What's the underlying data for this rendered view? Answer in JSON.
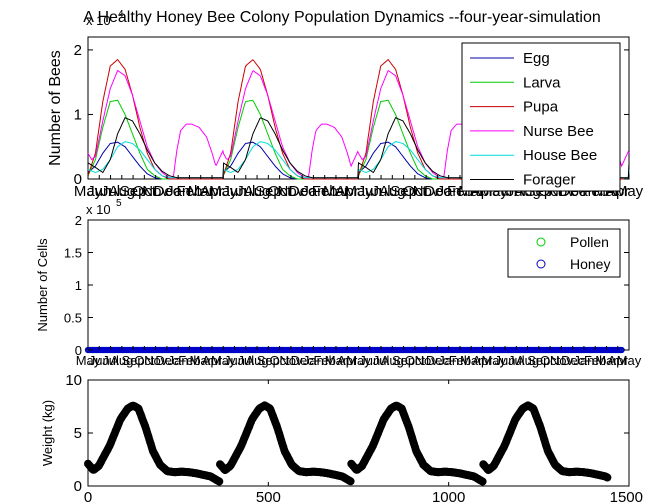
{
  "chart_data": [
    {
      "type": "line",
      "title": "A Healthy Honey Bee Colony Population Dynamics --four-year-simulation",
      "ylabel": "Number of Bees",
      "exponent_label": "x 10",
      "exponent": "4",
      "ylim": [
        0,
        2.2
      ],
      "yticks": [
        "0",
        "1",
        "2"
      ],
      "xlim": [
        0,
        1460
      ],
      "xtick_labels": [
        "May",
        "Jun",
        "Jul",
        "Aug",
        "Sep",
        "Oct",
        "Nov",
        "Dec",
        "Jan",
        "Feb",
        "Mar",
        "Apr",
        "May",
        "Jun",
        "Jul",
        "Aug",
        "Sep",
        "Oct",
        "Nov",
        "Dec",
        "Jan",
        "Feb",
        "Mar",
        "Apr",
        "May",
        "Jun",
        "Jul",
        "Aug",
        "Sep",
        "Oct",
        "Nov",
        "Dec",
        "Jan",
        "Feb",
        "Mar",
        "Apr",
        "May",
        "Jun",
        "Jul",
        "Aug",
        "Sep",
        "Oct",
        "Nov",
        "Dec",
        "Jan",
        "Feb",
        "Mar",
        "Apr",
        "May"
      ],
      "legend_position": "top-right",
      "cycle_days": 365,
      "series": [
        {
          "name": "Egg",
          "color": "#0000aa",
          "x": [
            0,
            20,
            40,
            60,
            80,
            100,
            120,
            140,
            160,
            180,
            200,
            365
          ],
          "y": [
            0.1,
            0.2,
            0.4,
            0.55,
            0.57,
            0.5,
            0.35,
            0.2,
            0.08,
            0.02,
            0,
            0
          ]
        },
        {
          "name": "Larva",
          "color": "#00cc00",
          "x": [
            0,
            20,
            40,
            60,
            80,
            100,
            120,
            140,
            160,
            180,
            200,
            220,
            365
          ],
          "y": [
            0.05,
            0.3,
            0.8,
            1.2,
            1.22,
            1.0,
            0.7,
            0.4,
            0.15,
            0.05,
            0,
            0,
            0
          ]
        },
        {
          "name": "Pupa",
          "color": "#cc0000",
          "x": [
            0,
            20,
            40,
            60,
            80,
            100,
            120,
            140,
            160,
            180,
            200,
            220,
            240,
            365
          ],
          "y": [
            0.05,
            0.4,
            1.2,
            1.75,
            1.85,
            1.7,
            1.3,
            0.8,
            0.4,
            0.15,
            0.05,
            0,
            0,
            0
          ]
        },
        {
          "name": "Nurse Bee",
          "color": "#ff00ff",
          "x": [
            0,
            10,
            20,
            40,
            60,
            80,
            100,
            120,
            140,
            160,
            180,
            200,
            220,
            230,
            240,
            250,
            265,
            280,
            300,
            320,
            335,
            345,
            365
          ],
          "y": [
            0.4,
            0.3,
            0.35,
            0.9,
            1.4,
            1.68,
            1.6,
            1.3,
            0.9,
            0.5,
            0.25,
            0.1,
            0.02,
            0.02,
            0.45,
            0.75,
            0.85,
            0.85,
            0.8,
            0.65,
            0.4,
            0.2,
            0.45
          ]
        },
        {
          "name": "House Bee",
          "color": "#00dddd",
          "x": [
            0,
            20,
            40,
            60,
            80,
            100,
            120,
            140,
            160,
            180,
            200,
            220,
            365
          ],
          "y": [
            0.15,
            0.1,
            0.15,
            0.3,
            0.5,
            0.58,
            0.55,
            0.45,
            0.3,
            0.15,
            0.05,
            0.02,
            0.02
          ]
        },
        {
          "name": "Forager",
          "color": "#000000",
          "x": [
            0,
            20,
            40,
            60,
            80,
            100,
            120,
            140,
            160,
            180,
            200,
            220,
            240,
            365
          ],
          "y": [
            0.25,
            0.18,
            0.1,
            0.3,
            0.7,
            0.95,
            0.9,
            0.7,
            0.45,
            0.25,
            0.12,
            0.05,
            0.02,
            0.02
          ]
        }
      ]
    },
    {
      "type": "scatter",
      "ylabel": "Number of Cells",
      "exponent_label": "x 10",
      "exponent": "5",
      "ylim": [
        0,
        2
      ],
      "yticks": [
        "0",
        "0.5",
        "1",
        "1.5",
        "2"
      ],
      "xlim": [
        0,
        1460
      ],
      "xtick_labels": [
        "May",
        "Jun",
        "Jul",
        "Aug",
        "Sep",
        "Oct",
        "Nov",
        "Dec",
        "Jan",
        "Feb",
        "Mar",
        "Apr",
        "May",
        "Jun",
        "Jul",
        "Aug",
        "Sep",
        "Oct",
        "Nov",
        "Dec",
        "Jan",
        "Feb",
        "Mar",
        "Apr",
        "May",
        "Jun",
        "Jul",
        "Aug",
        "Sep",
        "Oct",
        "Nov",
        "Dec",
        "Jan",
        "Feb",
        "Mar",
        "Apr",
        "May",
        "Jun",
        "Jul",
        "Aug",
        "Sep",
        "Oct",
        "Nov",
        "Dec",
        "Jan",
        "Feb",
        "Mar",
        "Apr",
        "May"
      ],
      "legend_position": "top-right",
      "series": [
        {
          "name": "Pollen",
          "color": "#00cc00",
          "x_range": [
            0,
            1440
          ],
          "y": 0
        },
        {
          "name": "Honey",
          "color": "#0000cc",
          "x_range": [
            0,
            1440
          ],
          "y": 0
        }
      ]
    },
    {
      "type": "scatter",
      "ylabel": "Weight (kg)",
      "ylim": [
        0,
        10
      ],
      "yticks": [
        "0",
        "5",
        "10"
      ],
      "xlim": [
        0,
        1500
      ],
      "xticks": [
        "0",
        "500",
        "1000",
        "1500"
      ],
      "series": [
        {
          "name": "",
          "color": "#000000",
          "cycle_days": 365,
          "x": [
            0,
            15,
            30,
            60,
            90,
            110,
            125,
            140,
            160,
            180,
            200,
            220,
            240,
            260,
            280,
            300,
            320,
            340,
            365
          ],
          "y": [
            2.1,
            1.5,
            1.9,
            3.8,
            6.3,
            7.3,
            7.6,
            7.3,
            5.5,
            3.3,
            2.0,
            1.4,
            1.3,
            1.35,
            1.3,
            1.2,
            1.05,
            0.9,
            0.4
          ]
        }
      ]
    }
  ]
}
